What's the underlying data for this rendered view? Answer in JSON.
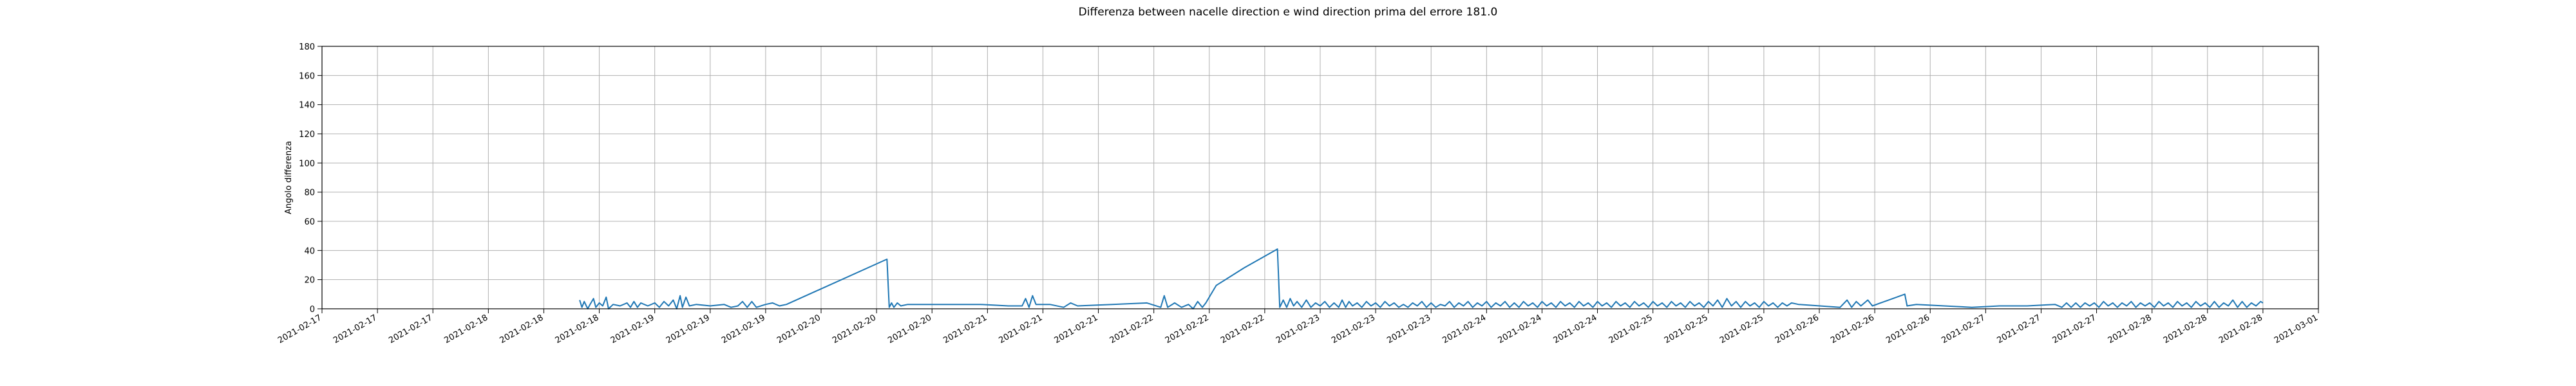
{
  "chart_data": {
    "type": "line",
    "title": "Differenza between nacelle direction e wind direction prima del errore 181.0",
    "ylabel": "Angolo differenza",
    "xlabel": "",
    "ylim": [
      0,
      180
    ],
    "yticks": [
      0,
      20,
      40,
      60,
      80,
      100,
      120,
      140,
      160,
      180
    ],
    "grid": true,
    "xtick_labels": [
      "2021-02-17",
      "2021-02-17",
      "2021-02-17",
      "2021-02-18",
      "2021-02-18",
      "2021-02-18",
      "2021-02-19",
      "2021-02-19",
      "2021-02-19",
      "2021-02-20",
      "2021-02-20",
      "2021-02-20",
      "2021-02-21",
      "2021-02-21",
      "2021-02-21",
      "2021-02-22",
      "2021-02-22",
      "2021-02-22",
      "2021-02-23",
      "2021-02-23",
      "2021-02-23",
      "2021-02-24",
      "2021-02-24",
      "2021-02-24",
      "2021-02-25",
      "2021-02-25",
      "2021-02-25",
      "2021-02-26",
      "2021-02-26",
      "2021-02-26",
      "2021-02-27",
      "2021-02-27",
      "2021-02-27",
      "2021-02-28",
      "2021-02-28",
      "2021-02-28",
      "2021-03-01"
    ],
    "x_range": [
      "2021-02-17 00:00",
      "2021-03-01 00:00"
    ],
    "series": [
      {
        "color": "#1f77b4",
        "points": [
          [
            "2021-02-18 13:10",
            6
          ],
          [
            "2021-02-18 13:30",
            1
          ],
          [
            "2021-02-18 13:50",
            5
          ],
          [
            "2021-02-18 14:20",
            0
          ],
          [
            "2021-02-18 14:40",
            3
          ],
          [
            "2021-02-18 15:10",
            7
          ],
          [
            "2021-02-18 15:30",
            1
          ],
          [
            "2021-02-18 16:00",
            4
          ],
          [
            "2021-02-18 16:30",
            2
          ],
          [
            "2021-02-18 17:00",
            8
          ],
          [
            "2021-02-18 17:20",
            0
          ],
          [
            "2021-02-18 18:00",
            3
          ],
          [
            "2021-02-18 19:00",
            2
          ],
          [
            "2021-02-18 20:00",
            4
          ],
          [
            "2021-02-18 20:30",
            1
          ],
          [
            "2021-02-18 21:00",
            5
          ],
          [
            "2021-02-18 21:30",
            1
          ],
          [
            "2021-02-18 22:00",
            4
          ],
          [
            "2021-02-18 23:00",
            2
          ],
          [
            "2021-02-19 00:00",
            4
          ],
          [
            "2021-02-19 00:40",
            1
          ],
          [
            "2021-02-19 01:20",
            5
          ],
          [
            "2021-02-19 02:00",
            2
          ],
          [
            "2021-02-19 02:40",
            6
          ],
          [
            "2021-02-19 03:10",
            0
          ],
          [
            "2021-02-19 03:40",
            9
          ],
          [
            "2021-02-19 04:00",
            1
          ],
          [
            "2021-02-19 04:30",
            8
          ],
          [
            "2021-02-19 05:00",
            2
          ],
          [
            "2021-02-19 06:00",
            3
          ],
          [
            "2021-02-19 08:00",
            2
          ],
          [
            "2021-02-19 10:00",
            3
          ],
          [
            "2021-02-19 11:00",
            1
          ],
          [
            "2021-02-19 12:00",
            2
          ],
          [
            "2021-02-19 12:40",
            5
          ],
          [
            "2021-02-19 13:20",
            1
          ],
          [
            "2021-02-19 14:00",
            5
          ],
          [
            "2021-02-19 14:40",
            1
          ],
          [
            "2021-02-19 16:00",
            3
          ],
          [
            "2021-02-19 17:00",
            4
          ],
          [
            "2021-02-19 18:00",
            2
          ],
          [
            "2021-02-19 19:00",
            3
          ],
          [
            "2021-02-20 09:30",
            34
          ],
          [
            "2021-02-20 09:50",
            1
          ],
          [
            "2021-02-20 10:10",
            4
          ],
          [
            "2021-02-20 10:30",
            1
          ],
          [
            "2021-02-20 11:00",
            4
          ],
          [
            "2021-02-20 11:30",
            2
          ],
          [
            "2021-02-20 12:30",
            3
          ],
          [
            "2021-02-20 14:00",
            3
          ],
          [
            "2021-02-20 18:00",
            3
          ],
          [
            "2021-02-20 23:00",
            3
          ],
          [
            "2021-02-21 03:00",
            2
          ],
          [
            "2021-02-21 05:00",
            2
          ],
          [
            "2021-02-21 05:30",
            7
          ],
          [
            "2021-02-21 06:00",
            1
          ],
          [
            "2021-02-21 06:30",
            9
          ],
          [
            "2021-02-21 07:00",
            3
          ],
          [
            "2021-02-21 09:00",
            3
          ],
          [
            "2021-02-21 11:00",
            1
          ],
          [
            "2021-02-21 12:00",
            4
          ],
          [
            "2021-02-21 13:00",
            2
          ],
          [
            "2021-02-21 18:00",
            3
          ],
          [
            "2021-02-21 23:00",
            4
          ],
          [
            "2021-02-22 01:00",
            1
          ],
          [
            "2021-02-22 01:30",
            9
          ],
          [
            "2021-02-22 02:00",
            1
          ],
          [
            "2021-02-22 03:00",
            4
          ],
          [
            "2021-02-22 04:00",
            1
          ],
          [
            "2021-02-22 05:00",
            3
          ],
          [
            "2021-02-22 05:40",
            0
          ],
          [
            "2021-02-22 06:20",
            5
          ],
          [
            "2021-02-22 07:00",
            1
          ],
          [
            "2021-02-22 07:30",
            4
          ],
          [
            "2021-02-22 09:00",
            16
          ],
          [
            "2021-02-22 13:00",
            28
          ],
          [
            "2021-02-22 17:50",
            41
          ],
          [
            "2021-02-22 18:10",
            1
          ],
          [
            "2021-02-22 18:40",
            6
          ],
          [
            "2021-02-22 19:10",
            1
          ],
          [
            "2021-02-22 19:40",
            7
          ],
          [
            "2021-02-22 20:10",
            2
          ],
          [
            "2021-02-22 20:40",
            5
          ],
          [
            "2021-02-22 21:20",
            1
          ],
          [
            "2021-02-22 22:00",
            6
          ],
          [
            "2021-02-22 22:40",
            1
          ],
          [
            "2021-02-22 23:20",
            4
          ],
          [
            "2021-02-23 00:00",
            2
          ],
          [
            "2021-02-23 00:40",
            5
          ],
          [
            "2021-02-23 01:20",
            1
          ],
          [
            "2021-02-23 02:00",
            4
          ],
          [
            "2021-02-23 02:40",
            1
          ],
          [
            "2021-02-23 03:10",
            6
          ],
          [
            "2021-02-23 03:40",
            1
          ],
          [
            "2021-02-23 04:10",
            5
          ],
          [
            "2021-02-23 04:40",
            2
          ],
          [
            "2021-02-23 05:20",
            4
          ],
          [
            "2021-02-23 06:00",
            1
          ],
          [
            "2021-02-23 06:40",
            5
          ],
          [
            "2021-02-23 07:20",
            2
          ],
          [
            "2021-02-23 08:00",
            4
          ],
          [
            "2021-02-23 08:40",
            1
          ],
          [
            "2021-02-23 09:20",
            5
          ],
          [
            "2021-02-23 10:00",
            2
          ],
          [
            "2021-02-23 10:40",
            4
          ],
          [
            "2021-02-23 11:20",
            1
          ],
          [
            "2021-02-23 12:00",
            3
          ],
          [
            "2021-02-23 12:40",
            1
          ],
          [
            "2021-02-23 13:20",
            4
          ],
          [
            "2021-02-23 14:00",
            2
          ],
          [
            "2021-02-23 14:40",
            5
          ],
          [
            "2021-02-23 15:20",
            1
          ],
          [
            "2021-02-23 16:00",
            4
          ],
          [
            "2021-02-23 16:40",
            1
          ],
          [
            "2021-02-23 17:20",
            3
          ],
          [
            "2021-02-23 18:00",
            2
          ],
          [
            "2021-02-23 18:40",
            5
          ],
          [
            "2021-02-23 19:20",
            1
          ],
          [
            "2021-02-23 20:00",
            4
          ],
          [
            "2021-02-23 20:40",
            2
          ],
          [
            "2021-02-23 21:20",
            5
          ],
          [
            "2021-02-23 22:00",
            1
          ],
          [
            "2021-02-23 22:40",
            4
          ],
          [
            "2021-02-23 23:20",
            2
          ],
          [
            "2021-02-24 00:00",
            5
          ],
          [
            "2021-02-24 00:40",
            1
          ],
          [
            "2021-02-24 01:20",
            4
          ],
          [
            "2021-02-24 02:00",
            2
          ],
          [
            "2021-02-24 02:40",
            5
          ],
          [
            "2021-02-24 03:20",
            1
          ],
          [
            "2021-02-24 04:00",
            4
          ],
          [
            "2021-02-24 04:40",
            1
          ],
          [
            "2021-02-24 05:20",
            5
          ],
          [
            "2021-02-24 06:00",
            2
          ],
          [
            "2021-02-24 06:40",
            4
          ],
          [
            "2021-02-24 07:20",
            1
          ],
          [
            "2021-02-24 08:00",
            5
          ],
          [
            "2021-02-24 08:40",
            2
          ],
          [
            "2021-02-24 09:20",
            4
          ],
          [
            "2021-02-24 10:00",
            1
          ],
          [
            "2021-02-24 10:40",
            5
          ],
          [
            "2021-02-24 11:20",
            2
          ],
          [
            "2021-02-24 12:00",
            4
          ],
          [
            "2021-02-24 12:40",
            1
          ],
          [
            "2021-02-24 13:20",
            5
          ],
          [
            "2021-02-24 14:00",
            2
          ],
          [
            "2021-02-24 14:40",
            4
          ],
          [
            "2021-02-24 15:20",
            1
          ],
          [
            "2021-02-24 16:00",
            5
          ],
          [
            "2021-02-24 16:40",
            2
          ],
          [
            "2021-02-24 17:20",
            4
          ],
          [
            "2021-02-24 18:00",
            1
          ],
          [
            "2021-02-24 18:40",
            5
          ],
          [
            "2021-02-24 19:20",
            2
          ],
          [
            "2021-02-24 20:00",
            4
          ],
          [
            "2021-02-24 20:40",
            1
          ],
          [
            "2021-02-24 21:20",
            5
          ],
          [
            "2021-02-24 22:00",
            2
          ],
          [
            "2021-02-24 22:40",
            4
          ],
          [
            "2021-02-24 23:20",
            1
          ],
          [
            "2021-02-25 00:00",
            5
          ],
          [
            "2021-02-25 00:40",
            2
          ],
          [
            "2021-02-25 01:20",
            4
          ],
          [
            "2021-02-25 02:00",
            1
          ],
          [
            "2021-02-25 02:40",
            5
          ],
          [
            "2021-02-25 03:20",
            2
          ],
          [
            "2021-02-25 04:00",
            4
          ],
          [
            "2021-02-25 04:40",
            1
          ],
          [
            "2021-02-25 05:20",
            5
          ],
          [
            "2021-02-25 06:00",
            2
          ],
          [
            "2021-02-25 06:40",
            4
          ],
          [
            "2021-02-25 07:20",
            1
          ],
          [
            "2021-02-25 08:00",
            5
          ],
          [
            "2021-02-25 08:40",
            2
          ],
          [
            "2021-02-25 09:20",
            6
          ],
          [
            "2021-02-25 10:00",
            1
          ],
          [
            "2021-02-25 10:40",
            7
          ],
          [
            "2021-02-25 11:20",
            2
          ],
          [
            "2021-02-25 12:00",
            5
          ],
          [
            "2021-02-25 12:40",
            1
          ],
          [
            "2021-02-25 13:20",
            5
          ],
          [
            "2021-02-25 14:00",
            2
          ],
          [
            "2021-02-25 14:40",
            4
          ],
          [
            "2021-02-25 15:20",
            1
          ],
          [
            "2021-02-25 16:00",
            5
          ],
          [
            "2021-02-25 16:40",
            2
          ],
          [
            "2021-02-25 17:20",
            4
          ],
          [
            "2021-02-25 18:00",
            1
          ],
          [
            "2021-02-25 18:40",
            4
          ],
          [
            "2021-02-25 19:20",
            2
          ],
          [
            "2021-02-25 20:00",
            4
          ],
          [
            "2021-02-25 21:00",
            3
          ],
          [
            "2021-02-26 03:00",
            1
          ],
          [
            "2021-02-26 04:00",
            6
          ],
          [
            "2021-02-26 04:40",
            1
          ],
          [
            "2021-02-26 05:20",
            5
          ],
          [
            "2021-02-26 06:00",
            2
          ],
          [
            "2021-02-26 07:00",
            6
          ],
          [
            "2021-02-26 07:40",
            2
          ],
          [
            "2021-02-26 10:00",
            6
          ],
          [
            "2021-02-26 12:20",
            10
          ],
          [
            "2021-02-26 12:40",
            2
          ],
          [
            "2021-02-26 14:00",
            3
          ],
          [
            "2021-02-26 18:00",
            2
          ],
          [
            "2021-02-26 22:00",
            1
          ],
          [
            "2021-02-27 02:00",
            2
          ],
          [
            "2021-02-27 06:00",
            2
          ],
          [
            "2021-02-27 10:00",
            3
          ],
          [
            "2021-02-27 11:00",
            1
          ],
          [
            "2021-02-27 11:40",
            4
          ],
          [
            "2021-02-27 12:20",
            1
          ],
          [
            "2021-02-27 13:00",
            4
          ],
          [
            "2021-02-27 13:40",
            1
          ],
          [
            "2021-02-27 14:20",
            4
          ],
          [
            "2021-02-27 15:00",
            2
          ],
          [
            "2021-02-27 15:40",
            4
          ],
          [
            "2021-02-27 16:20",
            1
          ],
          [
            "2021-02-27 17:00",
            5
          ],
          [
            "2021-02-27 17:40",
            2
          ],
          [
            "2021-02-27 18:20",
            4
          ],
          [
            "2021-02-27 19:00",
            1
          ],
          [
            "2021-02-27 19:40",
            4
          ],
          [
            "2021-02-27 20:20",
            2
          ],
          [
            "2021-02-27 21:00",
            5
          ],
          [
            "2021-02-27 21:40",
            1
          ],
          [
            "2021-02-27 22:20",
            4
          ],
          [
            "2021-02-27 23:00",
            2
          ],
          [
            "2021-02-27 23:40",
            4
          ],
          [
            "2021-02-28 00:20",
            1
          ],
          [
            "2021-02-28 01:00",
            5
          ],
          [
            "2021-02-28 01:40",
            2
          ],
          [
            "2021-02-28 02:20",
            4
          ],
          [
            "2021-02-28 03:00",
            1
          ],
          [
            "2021-02-28 03:40",
            5
          ],
          [
            "2021-02-28 04:20",
            2
          ],
          [
            "2021-02-28 05:00",
            4
          ],
          [
            "2021-02-28 05:40",
            1
          ],
          [
            "2021-02-28 06:20",
            5
          ],
          [
            "2021-02-28 07:00",
            2
          ],
          [
            "2021-02-28 07:40",
            4
          ],
          [
            "2021-02-28 08:20",
            1
          ],
          [
            "2021-02-28 09:00",
            5
          ],
          [
            "2021-02-28 09:40",
            1
          ],
          [
            "2021-02-28 10:20",
            4
          ],
          [
            "2021-02-28 11:00",
            2
          ],
          [
            "2021-02-28 11:40",
            6
          ],
          [
            "2021-02-28 12:20",
            1
          ],
          [
            "2021-02-28 13:00",
            5
          ],
          [
            "2021-02-28 13:40",
            1
          ],
          [
            "2021-02-28 14:20",
            4
          ],
          [
            "2021-02-28 15:00",
            2
          ],
          [
            "2021-02-28 15:40",
            5
          ],
          [
            "2021-02-28 16:00",
            4
          ]
        ]
      }
    ]
  }
}
